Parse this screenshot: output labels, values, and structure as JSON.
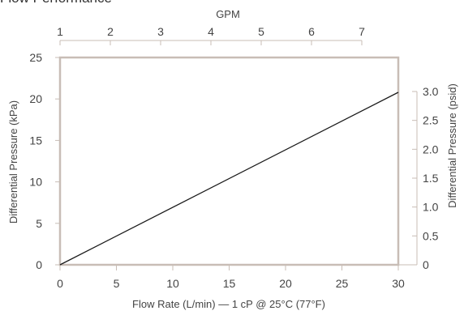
{
  "chart_data": {
    "type": "line",
    "title": "Flow Performance",
    "xlabel": "Flow Rate (L/min) — 1 cP @ 25°C (77°F)",
    "ylabel": "Differential Pressure (kPa)",
    "x2label": "GPM",
    "y2label": "Differential Pressure (psid)",
    "xlim": [
      0,
      30
    ],
    "ylim": [
      0,
      25
    ],
    "x2ticks": [
      "1",
      "2",
      "3",
      "4",
      "5",
      "6",
      "7"
    ],
    "x2tick_values": [
      1,
      2,
      3,
      4,
      5,
      6,
      7
    ],
    "xticks": [
      "0",
      "5",
      "10",
      "15",
      "20",
      "25",
      "30"
    ],
    "xtick_values": [
      0,
      5,
      10,
      15,
      20,
      25,
      30
    ],
    "yticks": [
      "0",
      "5",
      "10",
      "15",
      "20",
      "25"
    ],
    "ytick_values": [
      0,
      5,
      10,
      15,
      20,
      25
    ],
    "y2ticks": [
      "0",
      "0.5",
      "1.0",
      "1.5",
      "2.0",
      "2.5",
      "3.0"
    ],
    "y2tick_values": [
      0,
      0.5,
      1.0,
      1.5,
      2.0,
      2.5,
      3.0
    ],
    "grid": false,
    "series": [
      {
        "x": [
          0,
          30
        ],
        "y": [
          0,
          20.8
        ]
      }
    ],
    "colors": {
      "frame": "#c8bdb6",
      "line": "#1a1a1a",
      "text": "#444444"
    }
  }
}
